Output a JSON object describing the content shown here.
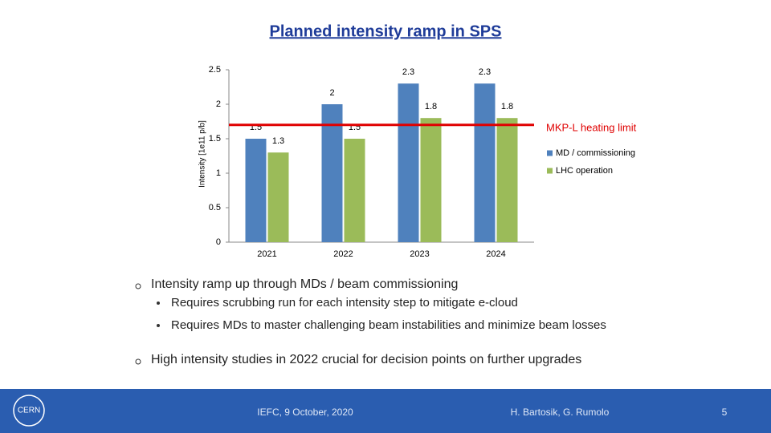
{
  "title": "Planned intensity ramp in SPS",
  "chart_data": {
    "type": "bar",
    "y_label": "Intensity [1e11 p/b]",
    "categories": [
      "2021",
      "2022",
      "2023",
      "2024"
    ],
    "series": [
      {
        "name": "MD / commissioning",
        "color": "#4f81bd",
        "values": [
          1.5,
          2,
          2.3,
          2.3
        ]
      },
      {
        "name": "LHC operation",
        "color": "#9bbb59",
        "values": [
          1.3,
          1.5,
          1.8,
          1.8
        ]
      }
    ],
    "ylim": [
      0,
      2.5
    ],
    "yticks": [
      0,
      0.5,
      1,
      1.5,
      2,
      2.5
    ],
    "reference_line": {
      "value": 1.7,
      "label": "MKP-L heating limit",
      "color": "#e00000"
    },
    "legend": "right"
  },
  "bullets": [
    {
      "text": "Intensity ramp up through MDs / beam commissioning",
      "sub": [
        "Requires scrubbing run for each intensity step to mitigate e-cloud",
        "Requires MDs to master challenging beam instabilities and minimize beam losses"
      ]
    },
    {
      "text": "High intensity studies in 2022 crucial for decision points on further upgrades",
      "sub": []
    }
  ],
  "footer": {
    "logo": "CERN",
    "event": "IEFC, 9 October, 2020",
    "authors": "H. Bartosik, G. Rumolo",
    "page": "5"
  }
}
